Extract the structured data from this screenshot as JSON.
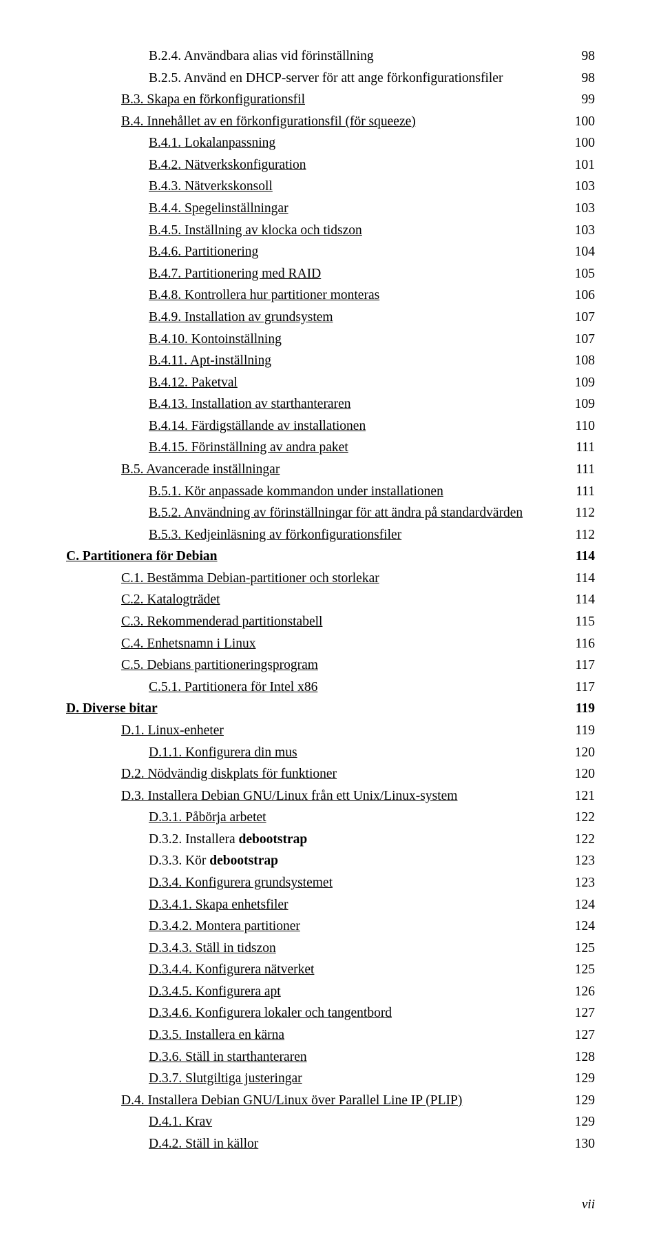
{
  "page_number_roman": "vii",
  "entries": [
    {
      "indent": 3,
      "page": "98",
      "label_runs": [
        {
          "text": "B.2.4. Användbara alias vid förinställning"
        }
      ]
    },
    {
      "indent": 3,
      "page": "98",
      "label_runs": [
        {
          "text": "B.2.5. Använd en DHCP-server för att ange förkonfigurationsfiler"
        }
      ]
    },
    {
      "indent": 2,
      "page": "99",
      "label_runs": [
        {
          "text": "B.3. Skapa en förkonfigurationsfil",
          "link": true
        }
      ]
    },
    {
      "indent": 2,
      "page": "100",
      "label_runs": [
        {
          "text": "B.4. Innehållet av en förkonfigurationsfil (för squeeze)",
          "link": true
        }
      ]
    },
    {
      "indent": 3,
      "page": "100",
      "label_runs": [
        {
          "text": "B.4.1. Lokalanpassning",
          "link": true
        }
      ]
    },
    {
      "indent": 3,
      "page": "101",
      "label_runs": [
        {
          "text": "B.4.2. Nätverkskonfiguration",
          "link": true
        }
      ]
    },
    {
      "indent": 3,
      "page": "103",
      "label_runs": [
        {
          "text": "B.4.3. Nätverkskonsoll",
          "link": true
        }
      ]
    },
    {
      "indent": 3,
      "page": "103",
      "label_runs": [
        {
          "text": "B.4.4. Spegelinställningar",
          "link": true
        }
      ]
    },
    {
      "indent": 3,
      "page": "103",
      "label_runs": [
        {
          "text": "B.4.5. Inställning av klocka och tidszon",
          "link": true
        }
      ]
    },
    {
      "indent": 3,
      "page": "104",
      "label_runs": [
        {
          "text": "B.4.6. Partitionering",
          "link": true
        }
      ]
    },
    {
      "indent": 3,
      "page": "105",
      "label_runs": [
        {
          "text": "B.4.7. Partitionering med RAID",
          "link": true
        }
      ]
    },
    {
      "indent": 3,
      "page": "106",
      "label_runs": [
        {
          "text": "B.4.8. Kontrollera hur partitioner monteras",
          "link": true
        }
      ]
    },
    {
      "indent": 3,
      "page": "107",
      "label_runs": [
        {
          "text": "B.4.9. Installation av grundsystem",
          "link": true
        }
      ]
    },
    {
      "indent": 3,
      "page": "107",
      "label_runs": [
        {
          "text": "B.4.10. Kontoinställning",
          "link": true
        }
      ]
    },
    {
      "indent": 3,
      "page": "108",
      "label_runs": [
        {
          "text": "B.4.11. Apt-inställning",
          "link": true
        }
      ]
    },
    {
      "indent": 3,
      "page": "109",
      "label_runs": [
        {
          "text": "B.4.12. Paketval",
          "link": true
        }
      ]
    },
    {
      "indent": 3,
      "page": "109",
      "label_runs": [
        {
          "text": "B.4.13. Installation av starthanteraren",
          "link": true
        }
      ]
    },
    {
      "indent": 3,
      "page": "110",
      "label_runs": [
        {
          "text": "B.4.14. Färdigställande av installationen",
          "link": true
        }
      ]
    },
    {
      "indent": 3,
      "page": "111",
      "label_runs": [
        {
          "text": "B.4.15. Förinställning av andra paket",
          "link": true
        }
      ]
    },
    {
      "indent": 2,
      "page": "111",
      "label_runs": [
        {
          "text": "B.5. Avancerade inställningar",
          "link": true
        }
      ]
    },
    {
      "indent": 3,
      "page": "111",
      "label_runs": [
        {
          "text": "B.5.1. Kör anpassade kommandon under installationen",
          "link": true
        }
      ]
    },
    {
      "indent": 3,
      "page": "112",
      "label_runs": [
        {
          "text": "B.5.2. Användning av förinställningar för att ändra på standardvärden",
          "link": true
        }
      ]
    },
    {
      "indent": 3,
      "page": "112",
      "label_runs": [
        {
          "text": "B.5.3. Kedjeinläsning av förkonfigurationsfiler",
          "link": true
        }
      ]
    },
    {
      "indent": 0,
      "page": "114",
      "bold": true,
      "label_runs": [
        {
          "text": "C. Partitionera för Debian",
          "link": true,
          "bold": true
        }
      ]
    },
    {
      "indent": 2,
      "page": "114",
      "label_runs": [
        {
          "text": "C.1. Bestämma Debian-partitioner och storlekar",
          "link": true
        }
      ]
    },
    {
      "indent": 2,
      "page": "114",
      "label_runs": [
        {
          "text": "C.2. Katalogträdet",
          "link": true
        }
      ]
    },
    {
      "indent": 2,
      "page": "115",
      "label_runs": [
        {
          "text": "C.3. Rekommenderad partitionstabell",
          "link": true
        }
      ]
    },
    {
      "indent": 2,
      "page": "116",
      "label_runs": [
        {
          "text": "C.4. Enhetsnamn i Linux",
          "link": true
        }
      ]
    },
    {
      "indent": 2,
      "page": "117",
      "label_runs": [
        {
          "text": "C.5. Debians partitioneringsprogram",
          "link": true
        }
      ]
    },
    {
      "indent": 3,
      "page": "117",
      "label_runs": [
        {
          "text": "C.5.1. Partitionera för Intel x86",
          "link": true
        }
      ]
    },
    {
      "indent": 0,
      "page": "119",
      "bold": true,
      "label_runs": [
        {
          "text": "D. Diverse bitar",
          "link": true,
          "bold": true
        }
      ]
    },
    {
      "indent": 2,
      "page": "119",
      "label_runs": [
        {
          "text": "D.1. Linux-enheter",
          "link": true
        }
      ]
    },
    {
      "indent": 3,
      "page": "120",
      "label_runs": [
        {
          "text": "D.1.1. Konfigurera din mus",
          "link": true
        }
      ]
    },
    {
      "indent": 2,
      "page": "120",
      "label_runs": [
        {
          "text": "D.2. Nödvändig diskplats för funktioner",
          "link": true
        }
      ]
    },
    {
      "indent": 2,
      "page": "121",
      "label_runs": [
        {
          "text": "D.3. Installera Debian GNU/Linux från ett Unix/Linux-system",
          "link": true
        }
      ]
    },
    {
      "indent": 3,
      "page": "122",
      "label_runs": [
        {
          "text": "D.3.1. Påbörja arbetet",
          "link": true
        }
      ]
    },
    {
      "indent": 3,
      "page": "122",
      "label_runs": [
        {
          "text": "D.3.2. Installera "
        },
        {
          "text": "debootstrap",
          "bold": true
        }
      ]
    },
    {
      "indent": 3,
      "page": "123",
      "label_runs": [
        {
          "text": "D.3.3. Kör "
        },
        {
          "text": "debootstrap",
          "bold": true
        }
      ]
    },
    {
      "indent": 3,
      "page": "123",
      "label_runs": [
        {
          "text": "D.3.4. Konfigurera grundsystemet",
          "link": true
        }
      ]
    },
    {
      "indent": 3,
      "page": "124",
      "label_runs": [
        {
          "text": "D.3.4.1. Skapa enhetsfiler",
          "link": true
        }
      ]
    },
    {
      "indent": 3,
      "page": "124",
      "label_runs": [
        {
          "text": "D.3.4.2. Montera partitioner",
          "link": true
        }
      ]
    },
    {
      "indent": 3,
      "page": "125",
      "label_runs": [
        {
          "text": "D.3.4.3. Ställ in tidszon",
          "link": true
        }
      ]
    },
    {
      "indent": 3,
      "page": "125",
      "label_runs": [
        {
          "text": "D.3.4.4. Konfigurera nätverket",
          "link": true
        }
      ]
    },
    {
      "indent": 3,
      "page": "126",
      "label_runs": [
        {
          "text": "D.3.4.5. Konfigurera apt",
          "link": true
        }
      ]
    },
    {
      "indent": 3,
      "page": "127",
      "label_runs": [
        {
          "text": "D.3.4.6. Konfigurera lokaler och tangentbord",
          "link": true
        }
      ]
    },
    {
      "indent": 3,
      "page": "127",
      "label_runs": [
        {
          "text": "D.3.5. Installera en kärna",
          "link": true
        }
      ]
    },
    {
      "indent": 3,
      "page": "128",
      "label_runs": [
        {
          "text": "D.3.6. Ställ in starthanteraren",
          "link": true
        }
      ]
    },
    {
      "indent": 3,
      "page": "129",
      "label_runs": [
        {
          "text": "D.3.7. Slutgiltiga justeringar",
          "link": true
        }
      ]
    },
    {
      "indent": 2,
      "page": "129",
      "label_runs": [
        {
          "text": "D.4. Installera Debian GNU/Linux över Parallel Line IP (PLIP)",
          "link": true
        }
      ]
    },
    {
      "indent": 3,
      "page": "129",
      "label_runs": [
        {
          "text": "D.4.1. Krav",
          "link": true
        }
      ]
    },
    {
      "indent": 3,
      "page": "130",
      "label_runs": [
        {
          "text": "D.4.2. Ställ in källor",
          "link": true
        }
      ]
    }
  ]
}
